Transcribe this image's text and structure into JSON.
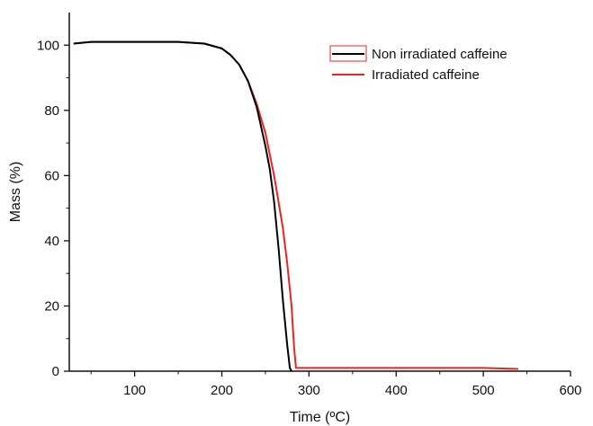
{
  "chart_data": {
    "type": "line",
    "xlabel": "Time (ºC)",
    "ylabel": "Mass (%)",
    "xlim": [
      25,
      600
    ],
    "ylim": [
      0,
      110
    ],
    "x_ticks": [
      100,
      200,
      300,
      400,
      500,
      600
    ],
    "y_ticks": [
      0,
      20,
      40,
      60,
      80,
      100
    ],
    "grid": false,
    "legend_position": "top-right",
    "series": [
      {
        "name": "Non irradiated caffeine",
        "color": "#000000",
        "x": [
          30,
          50,
          100,
          150,
          180,
          200,
          210,
          220,
          230,
          240,
          250,
          255,
          260,
          265,
          270,
          275,
          278,
          280
        ],
        "y": [
          100.5,
          101,
          101,
          101,
          100.5,
          99,
          97,
          94,
          89,
          81,
          69,
          62,
          52,
          38,
          22,
          8,
          1,
          0
        ]
      },
      {
        "name": "Irradiated caffeine",
        "color": "#e8251f",
        "x": [
          30,
          50,
          100,
          150,
          180,
          200,
          210,
          220,
          230,
          240,
          250,
          260,
          265,
          270,
          275,
          280,
          283,
          285,
          300,
          400,
          500,
          540
        ],
        "y": [
          100.5,
          101,
          101,
          101,
          100.5,
          99,
          97,
          94,
          89,
          82,
          73,
          60,
          52,
          44,
          33,
          20,
          7,
          1,
          1,
          1,
          1,
          0.7
        ]
      }
    ]
  }
}
